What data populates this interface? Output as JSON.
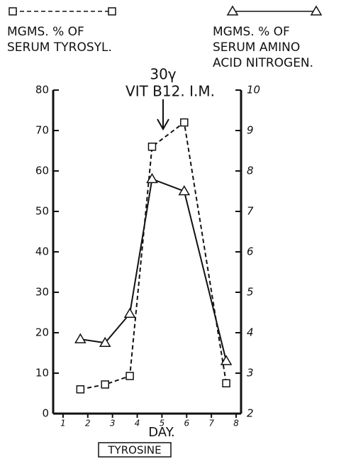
{
  "chart_data": {
    "type": "line",
    "annotations": [
      "30γ",
      "VIT B12. I.M."
    ],
    "xlabel": "DAY.",
    "footer": "TYROSINE",
    "x": [
      1.7,
      2.7,
      3.7,
      4.6,
      5.9,
      7.6
    ],
    "xlim": [
      0.6,
      8.2
    ],
    "xticks": [
      1,
      2,
      3,
      4,
      5,
      6,
      7,
      8
    ],
    "ylim": [
      0,
      80
    ],
    "yticks": [
      0,
      10,
      20,
      30,
      40,
      50,
      60,
      70,
      80
    ],
    "y2lim": [
      2,
      10
    ],
    "y2ticks": [
      2,
      3,
      4,
      5,
      6,
      7,
      8,
      9,
      10
    ],
    "series": [
      {
        "name": "MGMS. % OF\nSERUM TYROSYL.",
        "color": "#111111",
        "marker": "square",
        "dashed": true,
        "values": [
          6,
          7.2,
          9.3,
          66,
          72,
          7.5
        ]
      },
      {
        "name": "MGMS. % OF\nSERUM AMINO\nACID NITROGEN.",
        "color": "#111111",
        "marker": "triangle",
        "dashed": false,
        "axis": "y2",
        "values": [
          3.84,
          3.75,
          4.47,
          7.8,
          7.5,
          3.3
        ]
      }
    ]
  }
}
